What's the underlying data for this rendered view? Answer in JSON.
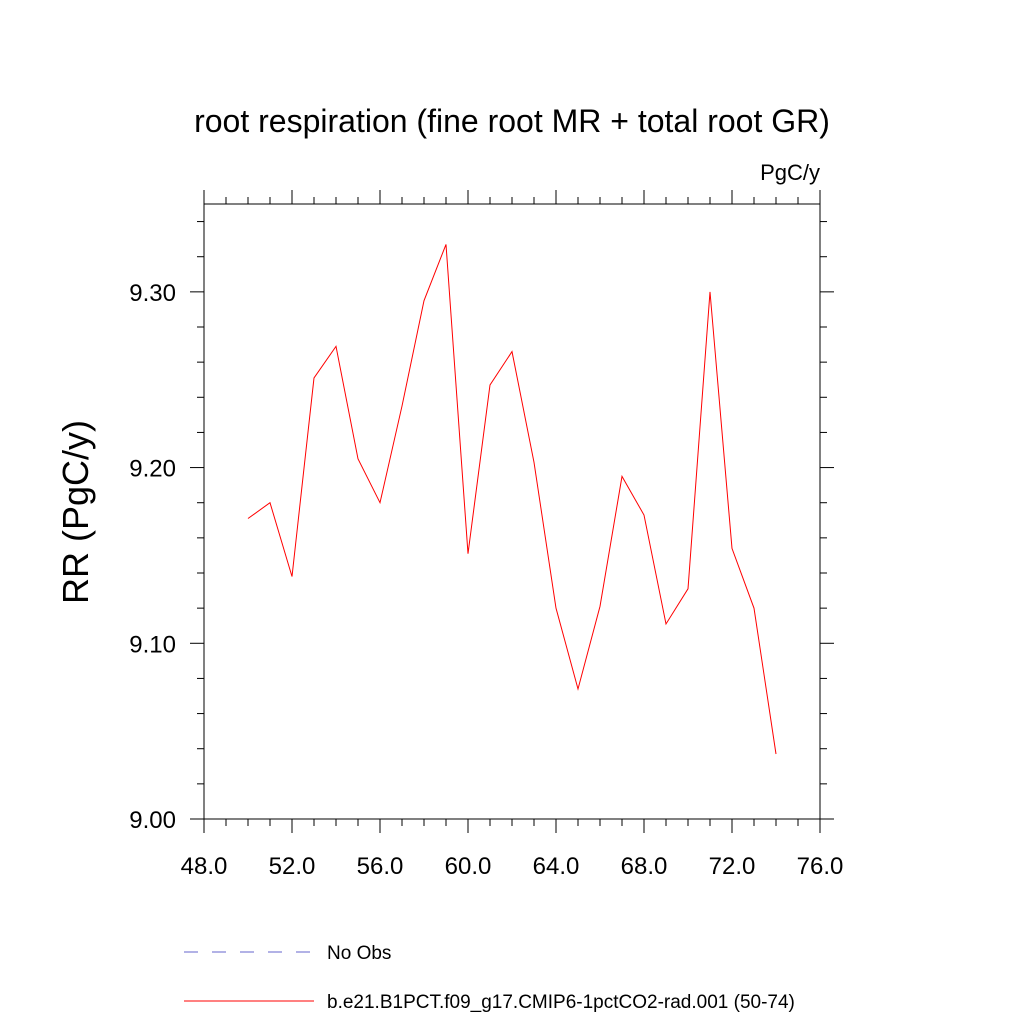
{
  "chart_data": {
    "type": "line",
    "title": "root respiration (fine root MR + total root GR)",
    "units_label": "PgC/y",
    "ylabel": "RR  (PgC/y)",
    "xlabel": "",
    "xlim": [
      48,
      76
    ],
    "ylim": [
      9.0,
      9.35
    ],
    "x_ticks": [
      48,
      52,
      56,
      60,
      64,
      68,
      72,
      76
    ],
    "x_tick_labels": [
      "48.0",
      "52.0",
      "56.0",
      "60.0",
      "64.0",
      "68.0",
      "72.0",
      "76.0"
    ],
    "x_minor_step": 1,
    "y_ticks": [
      9.0,
      9.1,
      9.2,
      9.3
    ],
    "y_tick_labels": [
      "9.00",
      "9.10",
      "9.20",
      "9.30"
    ],
    "y_minor_step": 0.02,
    "grid": false,
    "legend_position": "bottom",
    "series": [
      {
        "name": "b.e21.B1PCT.f09_g17.CMIP6-1pctCO2-rad.001 (50-74)",
        "color": "#ff0000",
        "style": "solid",
        "x": [
          50,
          51,
          52,
          53,
          54,
          55,
          56,
          57,
          58,
          59,
          60,
          61,
          62,
          63,
          64,
          65,
          66,
          67,
          68,
          69,
          70,
          71,
          72,
          73,
          74
        ],
        "y": [
          9.171,
          9.18,
          9.138,
          9.251,
          9.269,
          9.205,
          9.18,
          9.235,
          9.295,
          9.327,
          9.151,
          9.247,
          9.266,
          9.203,
          9.12,
          9.074,
          9.121,
          9.195,
          9.173,
          9.111,
          9.131,
          9.3,
          9.154,
          9.12,
          9.037
        ]
      }
    ],
    "legend": [
      {
        "label": "No Obs",
        "color": "#6666cc",
        "style": "dashed"
      },
      {
        "label": "b.e21.B1PCT.f09_g17.CMIP6-1pctCO2-rad.001 (50-74)",
        "color": "#ff0000",
        "style": "solid"
      }
    ]
  }
}
